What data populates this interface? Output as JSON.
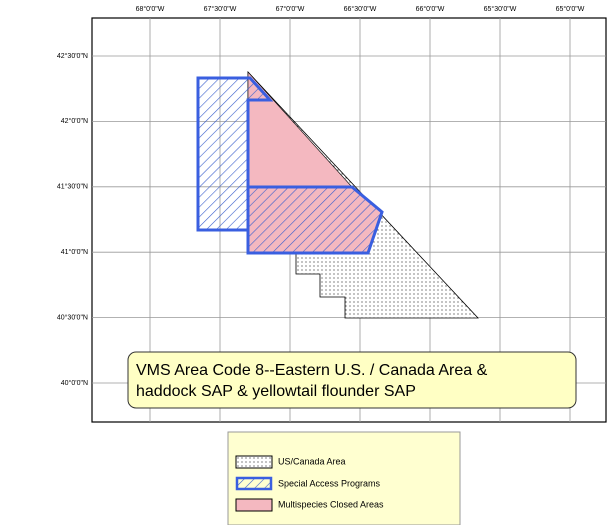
{
  "map": {
    "lon_labels": [
      "68°0'0\"W",
      "67°30'0\"W",
      "67°0'0\"W",
      "66°30'0\"W",
      "66°0'0\"W",
      "65°30'0\"W",
      "65°0'0\"W"
    ],
    "lat_labels": [
      "42°30'0\"N",
      "42°0'0\"N",
      "41°30'0\"N",
      "41°0'0\"N",
      "40°30'0\"N",
      "40°0'0\"N"
    ],
    "note": [
      "VMS Area Code 8--Eastern U.S. / Canada Area &",
      "haddock SAP & yellowtail flounder SAP"
    ],
    "legend": [
      "US/Canada Area",
      "Special Access Programs",
      "Multispecies Closed Areas"
    ]
  }
}
